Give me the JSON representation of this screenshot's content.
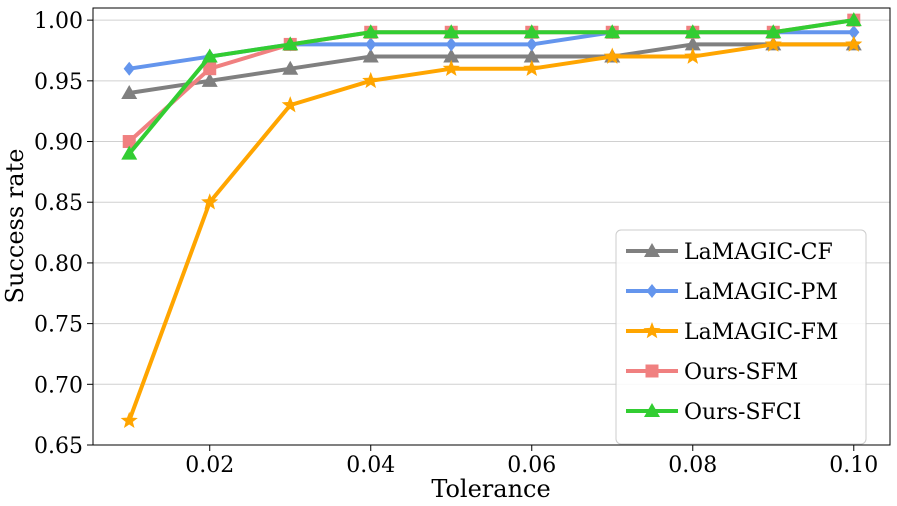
{
  "chart_data": {
    "type": "line",
    "title": "",
    "xlabel": "Tolerance",
    "ylabel": "Success rate",
    "x": [
      0.01,
      0.02,
      0.03,
      0.04,
      0.05,
      0.06,
      0.07,
      0.08,
      0.09,
      0.1
    ],
    "xlim": [
      0.0055,
      0.1045
    ],
    "ylim": [
      0.65,
      1.01
    ],
    "xticks": [
      0.02,
      0.04,
      0.06,
      0.08,
      0.1
    ],
    "xtick_labels": [
      "0.02",
      "0.04",
      "0.06",
      "0.08",
      "0.10"
    ],
    "yticks": [
      0.65,
      0.7,
      0.75,
      0.8,
      0.85,
      0.9,
      0.95,
      1.0
    ],
    "ytick_labels": [
      "0.65",
      "0.70",
      "0.75",
      "0.80",
      "0.85",
      "0.90",
      "0.95",
      "1.00"
    ],
    "grid": "horizontal",
    "legend_position": "lower-right",
    "series": [
      {
        "name": "LaMAGIC-CF",
        "color": "#808080",
        "marker": "triangle",
        "values": [
          0.94,
          0.95,
          0.96,
          0.97,
          0.97,
          0.97,
          0.97,
          0.98,
          0.98,
          0.98
        ]
      },
      {
        "name": "LaMAGIC-PM",
        "color": "#6495ED",
        "marker": "diamond",
        "values": [
          0.96,
          0.97,
          0.98,
          0.98,
          0.98,
          0.98,
          0.99,
          0.99,
          0.99,
          0.99
        ]
      },
      {
        "name": "LaMAGIC-FM",
        "color": "#FFA500",
        "marker": "star",
        "values": [
          0.67,
          0.85,
          0.93,
          0.95,
          0.96,
          0.96,
          0.97,
          0.97,
          0.98,
          0.98
        ]
      },
      {
        "name": "Ours-SFM",
        "color": "#F08080",
        "marker": "square",
        "values": [
          0.9,
          0.96,
          0.98,
          0.99,
          0.99,
          0.99,
          0.99,
          0.99,
          0.99,
          1.0
        ]
      },
      {
        "name": "Ours-SFCI",
        "color": "#32CD32",
        "marker": "triangle",
        "values": [
          0.89,
          0.97,
          0.98,
          0.99,
          0.99,
          0.99,
          0.99,
          0.99,
          0.99,
          1.0
        ]
      }
    ]
  }
}
